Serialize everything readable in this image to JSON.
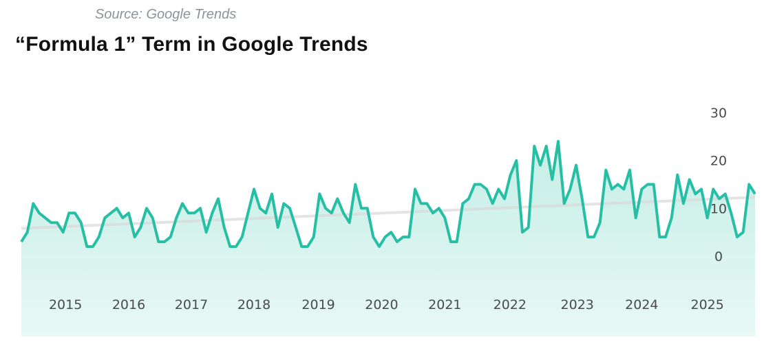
{
  "source": "Source: Google Trends",
  "title": "“Formula 1” Term in Google Trends",
  "chart_data": {
    "type": "area",
    "title": "“Formula 1” Term in Google Trends",
    "xlabel": "",
    "ylabel": "",
    "ylim": [
      0,
      30
    ],
    "yticks": [
      0,
      10,
      20,
      30
    ],
    "ytick_labels": [
      "0",
      "10",
      "20",
      "30"
    ],
    "xtick_labels": [
      "2015",
      "2016",
      "2017",
      "2018",
      "2019",
      "2020",
      "2021",
      "2022",
      "2023",
      "2024",
      "2025"
    ],
    "xtick_positions": [
      7.4,
      18,
      28.5,
      39,
      49.8,
      60.4,
      71,
      81.9,
      93.2,
      104,
      115
    ],
    "x_unit": "month index",
    "values": [
      3,
      5,
      11,
      9,
      8,
      7,
      7,
      5,
      9,
      9,
      7,
      2,
      2,
      4,
      8,
      9,
      10,
      8,
      9,
      4,
      6,
      10,
      8,
      3,
      3,
      4,
      8,
      11,
      9,
      9,
      10,
      5,
      9,
      12,
      6,
      2,
      2,
      4,
      9,
      14,
      10,
      9,
      13,
      6,
      11,
      10,
      6,
      2,
      2,
      4,
      13,
      10,
      9,
      12,
      9,
      7,
      15,
      10,
      10,
      4,
      2,
      4,
      5,
      3,
      4,
      4,
      14,
      11,
      11,
      9,
      10,
      8,
      3,
      3,
      11,
      12,
      15,
      15,
      14,
      11,
      14,
      12,
      17,
      20,
      5,
      6,
      23,
      19,
      23,
      16,
      24,
      11,
      14,
      19,
      12,
      4,
      4,
      7,
      18,
      14,
      15,
      14,
      18,
      8,
      14,
      15,
      15,
      4,
      4,
      8,
      17,
      11,
      16,
      13,
      14,
      8,
      14,
      12,
      13,
      9,
      4,
      5,
      15,
      13
    ],
    "trend": {
      "start": 5.8,
      "end": 12.3
    },
    "grid": false,
    "colors": {
      "line": "#26bfa5",
      "fill_top": "#c5eee6",
      "fill_bottom": "#e8f8f5",
      "trend": "#d9d9d9"
    }
  }
}
